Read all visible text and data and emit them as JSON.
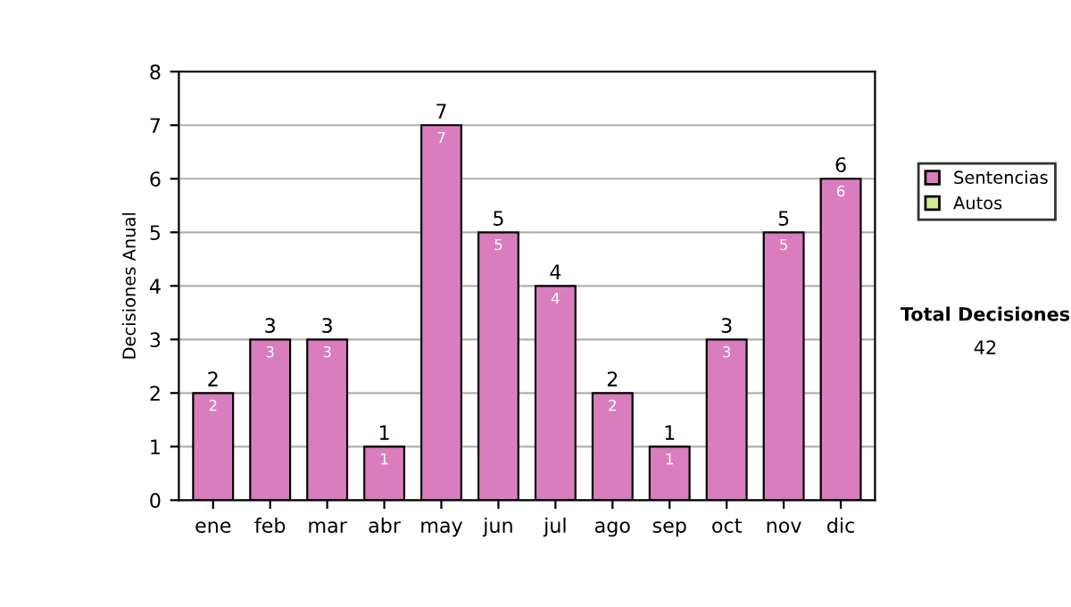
{
  "chart_data": {
    "type": "bar",
    "ylabel": "Decisiones Anual",
    "categories": [
      "ene",
      "feb",
      "mar",
      "abr",
      "may",
      "jun",
      "jul",
      "ago",
      "sep",
      "oct",
      "nov",
      "dic"
    ],
    "series": [
      {
        "name": "Sentencias",
        "color": "#da7dbe",
        "values": [
          2,
          3,
          3,
          1,
          7,
          5,
          4,
          2,
          1,
          3,
          5,
          6
        ]
      },
      {
        "name": "Autos",
        "color": "#d4e89a",
        "values": [
          null,
          null,
          null,
          null,
          null,
          null,
          null,
          null,
          null,
          null,
          null,
          null
        ]
      }
    ],
    "stacked": true,
    "data_labels": true,
    "totals": [
      "2",
      "3",
      "3",
      "1",
      "7",
      "5",
      "4",
      "2",
      "1",
      "3",
      "5",
      "6"
    ],
    "ylim": [
      0,
      8
    ],
    "yticks": [
      0,
      1,
      2,
      3,
      4,
      5,
      6,
      7,
      8
    ],
    "grid": "y",
    "legend": "right",
    "annotations": [
      "Total Decisiones",
      "42"
    ]
  }
}
